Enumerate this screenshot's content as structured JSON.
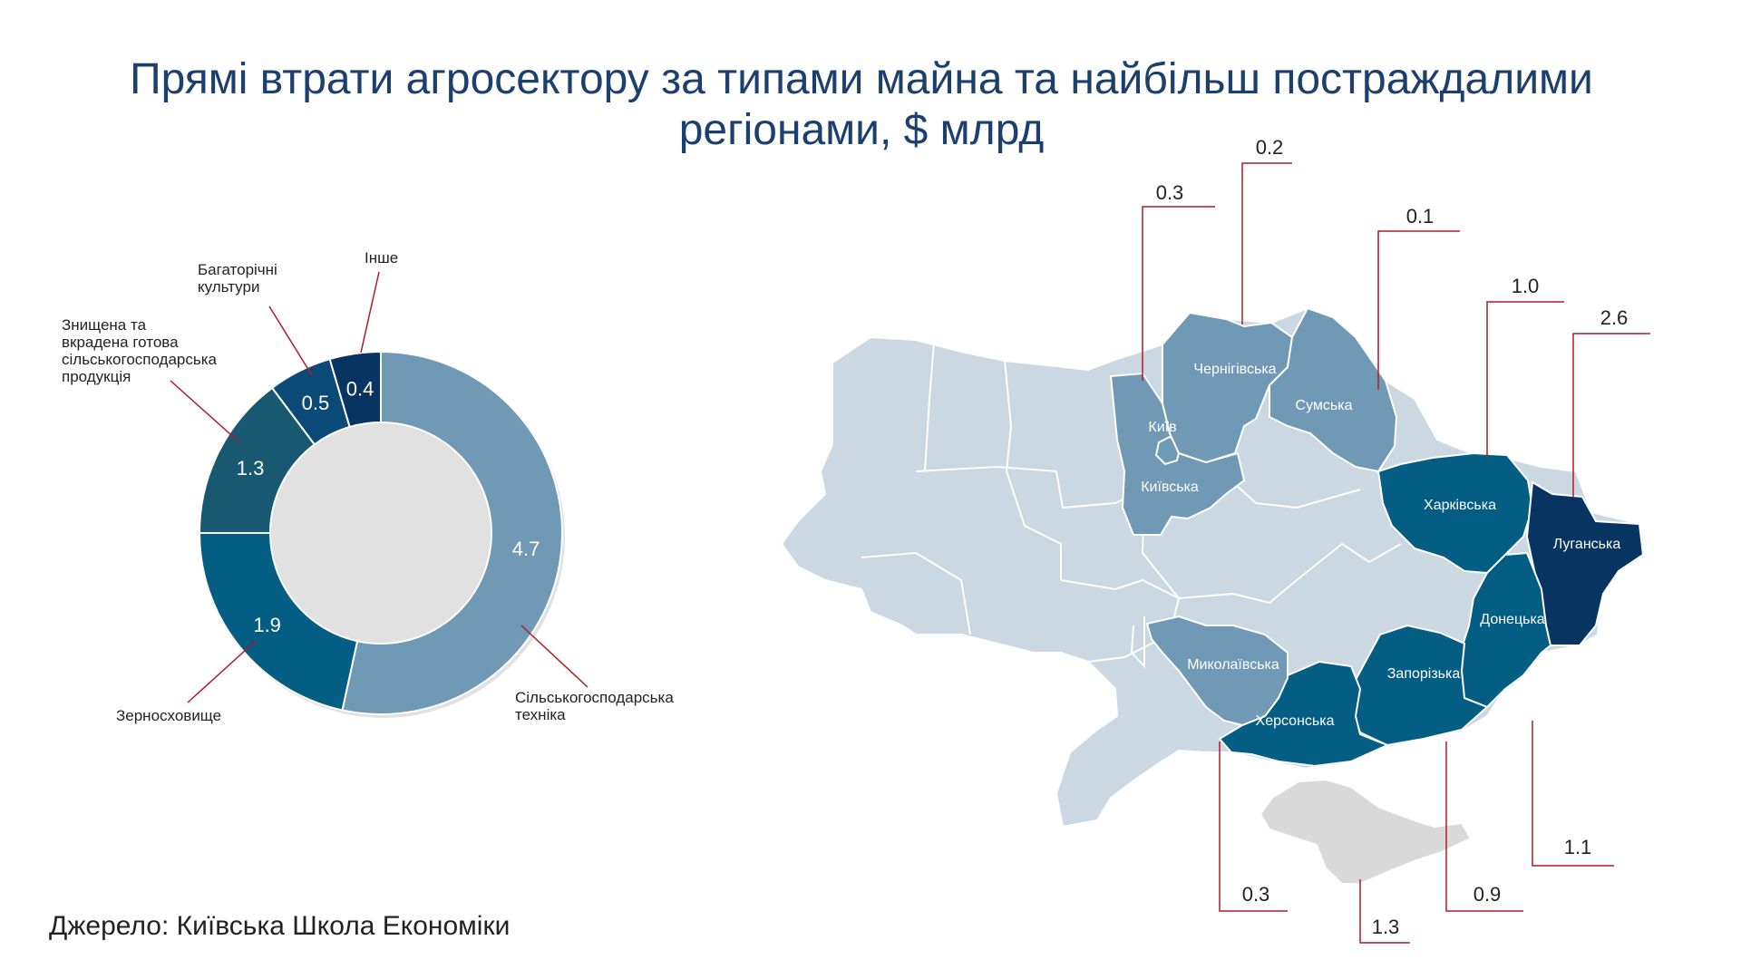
{
  "title": "Прямі втрати агросектору за типами майна та найбільш постраждалими регіонами, $ млрд",
  "source": "Джерело: Київська Школа Економіки",
  "colors": {
    "title": "#1b3f6e",
    "leader": "#b4182c",
    "map_light": "#cbd8e2",
    "map_medium": "#7099b6",
    "map_dark": "#045d83",
    "map_darkest": "#073461",
    "crimea": "#d9d9d9"
  },
  "chart_data": [
    {
      "type": "pie",
      "subtype": "donut",
      "slices": [
        {
          "label": "Сільськогосподарська техніка",
          "value": 4.7,
          "value_label": "4.7",
          "color": "#7099b6"
        },
        {
          "label": "Зерносховище",
          "value": 1.9,
          "value_label": "1.9",
          "color": "#045d83"
        },
        {
          "label": "Знищена та вкрадена готова сільськогосподарська продукція",
          "value": 1.3,
          "value_label": "1.3",
          "color": "#185871"
        },
        {
          "label": "Багаторічні культури",
          "value": 0.5,
          "value_label": "0.5",
          "color": "#0b4a76"
        },
        {
          "label": "Інше",
          "value": 0.4,
          "value_label": "0.4",
          "color": "#073461"
        }
      ]
    },
    {
      "type": "map",
      "regions": [
        {
          "name": "Київська",
          "inner_label": "Київська",
          "value": 0.3,
          "value_label": "0.3"
        },
        {
          "name": "Київ",
          "inner_label": "Київ",
          "value": null
        },
        {
          "name": "Чернігівська",
          "inner_label": "Чернігівська",
          "value": 0.2,
          "value_label": "0.2"
        },
        {
          "name": "Сумська",
          "inner_label": "Сумська",
          "value": 0.1,
          "value_label": "0.1"
        },
        {
          "name": "Харківська",
          "inner_label": "Харківська",
          "value": 1.0,
          "value_label": "1.0"
        },
        {
          "name": "Луганська",
          "inner_label": "Луганська",
          "value": 2.6,
          "value_label": "2.6"
        },
        {
          "name": "Донецька",
          "inner_label": "Донецька",
          "value": 1.1,
          "value_label": "1.1"
        },
        {
          "name": "Запорізька",
          "inner_label": "Запорізька",
          "value": 0.9,
          "value_label": "0.9"
        },
        {
          "name": "Херсонська",
          "inner_label": "Херсонська",
          "value": 1.3,
          "value_label": "1.3"
        },
        {
          "name": "Миколаївська",
          "inner_label": "Миколаївська",
          "value": 0.3,
          "value_label": "0.3"
        }
      ]
    }
  ]
}
